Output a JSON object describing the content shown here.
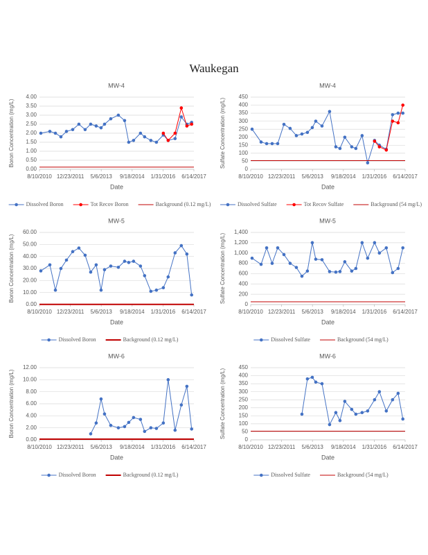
{
  "title": "Waukegan",
  "chart_data": [
    {
      "type": "line",
      "title": "MW-4",
      "x_label": "Date",
      "y_label": "Boron Concentration (mg/L)",
      "x": [
        "9/1/2010",
        "1/25/2011",
        "4/25/2011",
        "7/23/2011",
        "10/21/2011",
        "1/30/2012",
        "5/9/2012",
        "8/18/2012",
        "11/16/2012",
        "2/13/2013",
        "5/3/2013",
        "6/28/2013",
        "10/7/2013",
        "2/7/2014",
        "5/19/2014",
        "7/25/2014",
        "10/11/2014",
        "1/31/2015",
        "4/8/2015",
        "7/18/2015",
        "10/16/2015",
        "2/5/2016",
        "4/23/2016",
        "8/13/2016",
        "11/22/2016",
        "2/20/2017",
        "5/8/2017"
      ],
      "xlim": [
        "8/10/2010",
        "6/14/2017"
      ],
      "xticks": [
        "8/10/2010",
        "12/23/2011",
        "5/6/2013",
        "9/18/2014",
        "1/31/2016",
        "6/14/2017"
      ],
      "ylim": [
        0,
        4
      ],
      "yticks": [
        {
          "value": 0,
          "label": "0.00"
        },
        {
          "value": 0.5,
          "label": "0.50"
        },
        {
          "value": 1,
          "label": "1.00"
        },
        {
          "value": 1.5,
          "label": "1.50"
        },
        {
          "value": 2,
          "label": "2.00"
        },
        {
          "value": 2.5,
          "label": "2.50"
        },
        {
          "value": 3,
          "label": "3.00"
        },
        {
          "value": 3.5,
          "label": "3.50"
        },
        {
          "value": 4,
          "label": "4.00"
        }
      ],
      "grid": true,
      "series": [
        {
          "name": "Dissolved Boron",
          "color": "#4472c4",
          "values": [
            2.0,
            2.1,
            2.0,
            1.8,
            2.1,
            2.2,
            2.5,
            2.2,
            2.5,
            2.4,
            2.3,
            2.5,
            2.8,
            3.0,
            2.7,
            1.5,
            1.6,
            2.0,
            1.8,
            1.6,
            1.5,
            1.9,
            1.6,
            1.7,
            2.9,
            2.5,
            2.6
          ]
        },
        {
          "name": "Tot Recov Boron",
          "color": "#ff0000",
          "values": [
            null,
            null,
            null,
            null,
            null,
            null,
            null,
            null,
            null,
            null,
            null,
            null,
            null,
            null,
            null,
            null,
            null,
            null,
            null,
            null,
            null,
            2.0,
            1.6,
            2.0,
            3.4,
            2.4,
            2.5
          ]
        },
        {
          "name": "Background (0.12 mg/L)",
          "color": "#c00000",
          "x": [
            "8/10/2010",
            "6/14/2017"
          ],
          "values": [
            0.12,
            0.12
          ]
        }
      ]
    },
    {
      "type": "line",
      "title": "MW-4",
      "x_label": "Date",
      "y_label": "Sulfate Concentration (mg/L)",
      "x": [
        "9/1/2010",
        "1/25/2011",
        "4/25/2011",
        "7/23/2011",
        "10/21/2011",
        "1/30/2012",
        "5/9/2012",
        "8/18/2012",
        "11/16/2012",
        "2/13/2013",
        "5/3/2013",
        "6/28/2013",
        "10/7/2013",
        "2/7/2014",
        "5/19/2014",
        "7/25/2014",
        "10/11/2014",
        "1/31/2015",
        "4/8/2015",
        "7/18/2015",
        "10/16/2015",
        "2/5/2016",
        "4/23/2016",
        "8/13/2016",
        "11/22/2016",
        "2/20/2017",
        "5/8/2017"
      ],
      "xlim": [
        "8/10/2010",
        "6/14/2017"
      ],
      "xticks": [
        "8/10/2010",
        "12/23/2011",
        "5/6/2013",
        "9/18/2014",
        "1/31/2016",
        "6/14/2017"
      ],
      "ylim": [
        0,
        450
      ],
      "yticks": [
        0,
        50,
        100,
        150,
        200,
        250,
        300,
        350,
        400,
        450
      ],
      "grid": true,
      "series": [
        {
          "name": "Dissolved Sulfate",
          "color": "#4472c4",
          "values": [
            250,
            170,
            160,
            160,
            160,
            280,
            255,
            210,
            220,
            230,
            260,
            300,
            270,
            360,
            140,
            130,
            200,
            140,
            130,
            210,
            40,
            180,
            150,
            125,
            340,
            350,
            350
          ]
        },
        {
          "name": "Tot Recov Sulfate",
          "color": "#ff0000",
          "values": [
            null,
            null,
            null,
            null,
            null,
            null,
            null,
            null,
            null,
            null,
            null,
            null,
            null,
            null,
            null,
            null,
            null,
            null,
            null,
            null,
            null,
            175,
            140,
            120,
            300,
            290,
            400
          ]
        },
        {
          "name": "Background (54 mg/L)",
          "color": "#c00000",
          "x": [
            "8/10/2010",
            "6/14/2017"
          ],
          "values": [
            54,
            54
          ]
        }
      ]
    },
    {
      "type": "line",
      "title": "MW-5",
      "x_label": "Date",
      "y_label": "Boron Concentration (mg/L)",
      "x": [
        "9/1/2010",
        "1/25/2011",
        "4/25/2011",
        "7/23/2011",
        "10/21/2011",
        "1/30/2012",
        "5/9/2012",
        "8/18/2012",
        "11/16/2012",
        "2/13/2013",
        "5/3/2013",
        "6/28/2013",
        "10/7/2013",
        "2/7/2014",
        "5/19/2014",
        "7/25/2014",
        "10/11/2014",
        "1/31/2015",
        "4/8/2015",
        "7/18/2015",
        "10/16/2015",
        "2/5/2016",
        "4/23/2016",
        "8/13/2016",
        "11/22/2016",
        "2/20/2017",
        "5/8/2017"
      ],
      "xlim": [
        "8/10/2010",
        "6/14/2017"
      ],
      "xticks": [
        "8/10/2010",
        "12/23/2011",
        "5/6/2013",
        "9/18/2014",
        "1/31/2016",
        "6/14/2017"
      ],
      "ylim": [
        0,
        60
      ],
      "yticks": [
        {
          "value": 0,
          "label": "0.00"
        },
        {
          "value": 10,
          "label": "10.00"
        },
        {
          "value": 20,
          "label": "20.00"
        },
        {
          "value": 30,
          "label": "30.00"
        },
        {
          "value": 40,
          "label": "40.00"
        },
        {
          "value": 50,
          "label": "50.00"
        },
        {
          "value": 60,
          "label": "60.00"
        }
      ],
      "grid": true,
      "series": [
        {
          "name": "Dissolved Boron",
          "color": "#4472c4",
          "values": [
            28,
            33,
            12,
            30,
            37,
            44,
            47,
            41,
            27,
            33,
            12,
            29,
            32,
            31,
            36,
            35,
            36,
            32,
            24,
            11,
            12,
            14,
            23,
            43,
            49,
            42,
            8
          ]
        },
        {
          "name": "Background (0.12 mg/L)",
          "color": "#c00000",
          "width": 2,
          "x": [
            "8/10/2010",
            "6/14/2017"
          ],
          "values": [
            0.12,
            0.12
          ]
        }
      ]
    },
    {
      "type": "line",
      "title": "MW-5",
      "x_label": "Date",
      "y_label": "Sulfate Concentration (mg/L)",
      "x": [
        "9/1/2010",
        "1/25/2011",
        "4/25/2011",
        "7/23/2011",
        "10/21/2011",
        "1/30/2012",
        "5/9/2012",
        "8/18/2012",
        "11/16/2012",
        "2/13/2013",
        "5/3/2013",
        "6/28/2013",
        "10/7/2013",
        "2/7/2014",
        "5/19/2014",
        "7/25/2014",
        "10/11/2014",
        "1/31/2015",
        "4/8/2015",
        "7/18/2015",
        "10/16/2015",
        "2/5/2016",
        "4/23/2016",
        "8/13/2016",
        "11/22/2016",
        "2/20/2017",
        "5/8/2017"
      ],
      "xlim": [
        "8/10/2010",
        "6/14/2017"
      ],
      "xticks": [
        "8/10/2010",
        "12/23/2011",
        "5/6/2013",
        "9/18/2014",
        "1/31/2016",
        "6/14/2017"
      ],
      "ylim": [
        0,
        1400
      ],
      "yticks": [
        0,
        200,
        400,
        600,
        800,
        {
          "value": 1000,
          "label": "1,000"
        },
        {
          "value": 1200,
          "label": "1,200"
        },
        {
          "value": 1400,
          "label": "1,400"
        }
      ],
      "grid": true,
      "series": [
        {
          "name": "Dissolved Sulfate",
          "color": "#4472c4",
          "values": [
            900,
            780,
            1100,
            800,
            1100,
            970,
            800,
            720,
            550,
            650,
            1200,
            880,
            870,
            640,
            630,
            640,
            830,
            650,
            700,
            1200,
            900,
            1200,
            1000,
            1100,
            620,
            700,
            1100
          ]
        },
        {
          "name": "Background (54 mg/L)",
          "color": "#c00000",
          "x": [
            "8/10/2010",
            "6/14/2017"
          ],
          "values": [
            54,
            54
          ]
        }
      ]
    },
    {
      "type": "line",
      "title": "MW-6",
      "x_label": "Date",
      "y_label": "Boron Concentration (mg/L)",
      "x": [
        "9/1/2010",
        "1/25/2011",
        "4/25/2011",
        "7/23/2011",
        "10/21/2011",
        "1/30/2012",
        "5/9/2012",
        "8/18/2012",
        "11/16/2012",
        "2/13/2013",
        "5/3/2013",
        "6/28/2013",
        "10/7/2013",
        "2/7/2014",
        "5/19/2014",
        "7/25/2014",
        "10/11/2014",
        "1/31/2015",
        "4/8/2015",
        "7/18/2015",
        "10/16/2015",
        "2/5/2016",
        "4/23/2016",
        "8/13/2016",
        "11/22/2016",
        "2/20/2017",
        "5/8/2017"
      ],
      "xlim": [
        "8/10/2010",
        "6/14/2017"
      ],
      "xticks": [
        "8/10/2010",
        "12/23/2011",
        "5/6/2013",
        "9/18/2014",
        "1/31/2016",
        "6/14/2017"
      ],
      "ylim": [
        0,
        12
      ],
      "yticks": [
        {
          "value": 0,
          "label": "0.00"
        },
        {
          "value": 2,
          "label": "2.00"
        },
        {
          "value": 4,
          "label": "4.00"
        },
        {
          "value": 6,
          "label": "6.00"
        },
        {
          "value": 8,
          "label": "8.00"
        },
        {
          "value": 10,
          "label": "10.00"
        },
        {
          "value": 12,
          "label": "12.00"
        }
      ],
      "grid": true,
      "series": [
        {
          "name": "Dissolved Boron",
          "color": "#4472c4",
          "values": [
            null,
            null,
            null,
            null,
            null,
            null,
            null,
            null,
            1.0,
            2.8,
            6.8,
            4.3,
            2.4,
            2.0,
            2.2,
            2.9,
            3.7,
            3.4,
            1.4,
            2.0,
            1.9,
            2.8,
            10.0,
            1.6,
            5.8,
            8.9,
            1.8
          ]
        },
        {
          "name": "Background (0.12 mg/L)",
          "color": "#c00000",
          "width": 2,
          "x": [
            "8/10/2010",
            "6/14/2017"
          ],
          "values": [
            0.12,
            0.12
          ]
        }
      ]
    },
    {
      "type": "line",
      "title": "MW-6",
      "x_label": "Date",
      "y_label": "Sulfate Concentration (mg/L)",
      "x": [
        "9/1/2010",
        "1/25/2011",
        "4/25/2011",
        "7/23/2011",
        "10/21/2011",
        "1/30/2012",
        "5/9/2012",
        "8/18/2012",
        "11/16/2012",
        "2/13/2013",
        "5/3/2013",
        "6/28/2013",
        "10/7/2013",
        "2/7/2014",
        "5/19/2014",
        "7/25/2014",
        "10/11/2014",
        "1/31/2015",
        "4/8/2015",
        "7/18/2015",
        "10/16/2015",
        "2/5/2016",
        "4/23/2016",
        "8/13/2016",
        "11/22/2016",
        "2/20/2017",
        "5/8/2017"
      ],
      "xlim": [
        "8/10/2010",
        "6/14/2017"
      ],
      "xticks": [
        "8/10/2010",
        "12/23/2011",
        "5/6/2013",
        "9/18/2014",
        "1/31/2016",
        "6/14/2017"
      ],
      "ylim": [
        0,
        450
      ],
      "yticks": [
        0,
        50,
        100,
        150,
        200,
        250,
        300,
        350,
        400,
        450
      ],
      "grid": true,
      "series": [
        {
          "name": "Dissolved Sulfate",
          "color": "#4472c4",
          "values": [
            null,
            null,
            null,
            null,
            null,
            null,
            null,
            null,
            160,
            380,
            390,
            360,
            350,
            95,
            170,
            120,
            240,
            190,
            160,
            170,
            180,
            250,
            300,
            180,
            250,
            290,
            130
          ]
        },
        {
          "name": "Background (54 mg/L)",
          "color": "#c00000",
          "x": [
            "8/10/2010",
            "6/14/2017"
          ],
          "values": [
            54,
            54
          ]
        }
      ]
    }
  ]
}
